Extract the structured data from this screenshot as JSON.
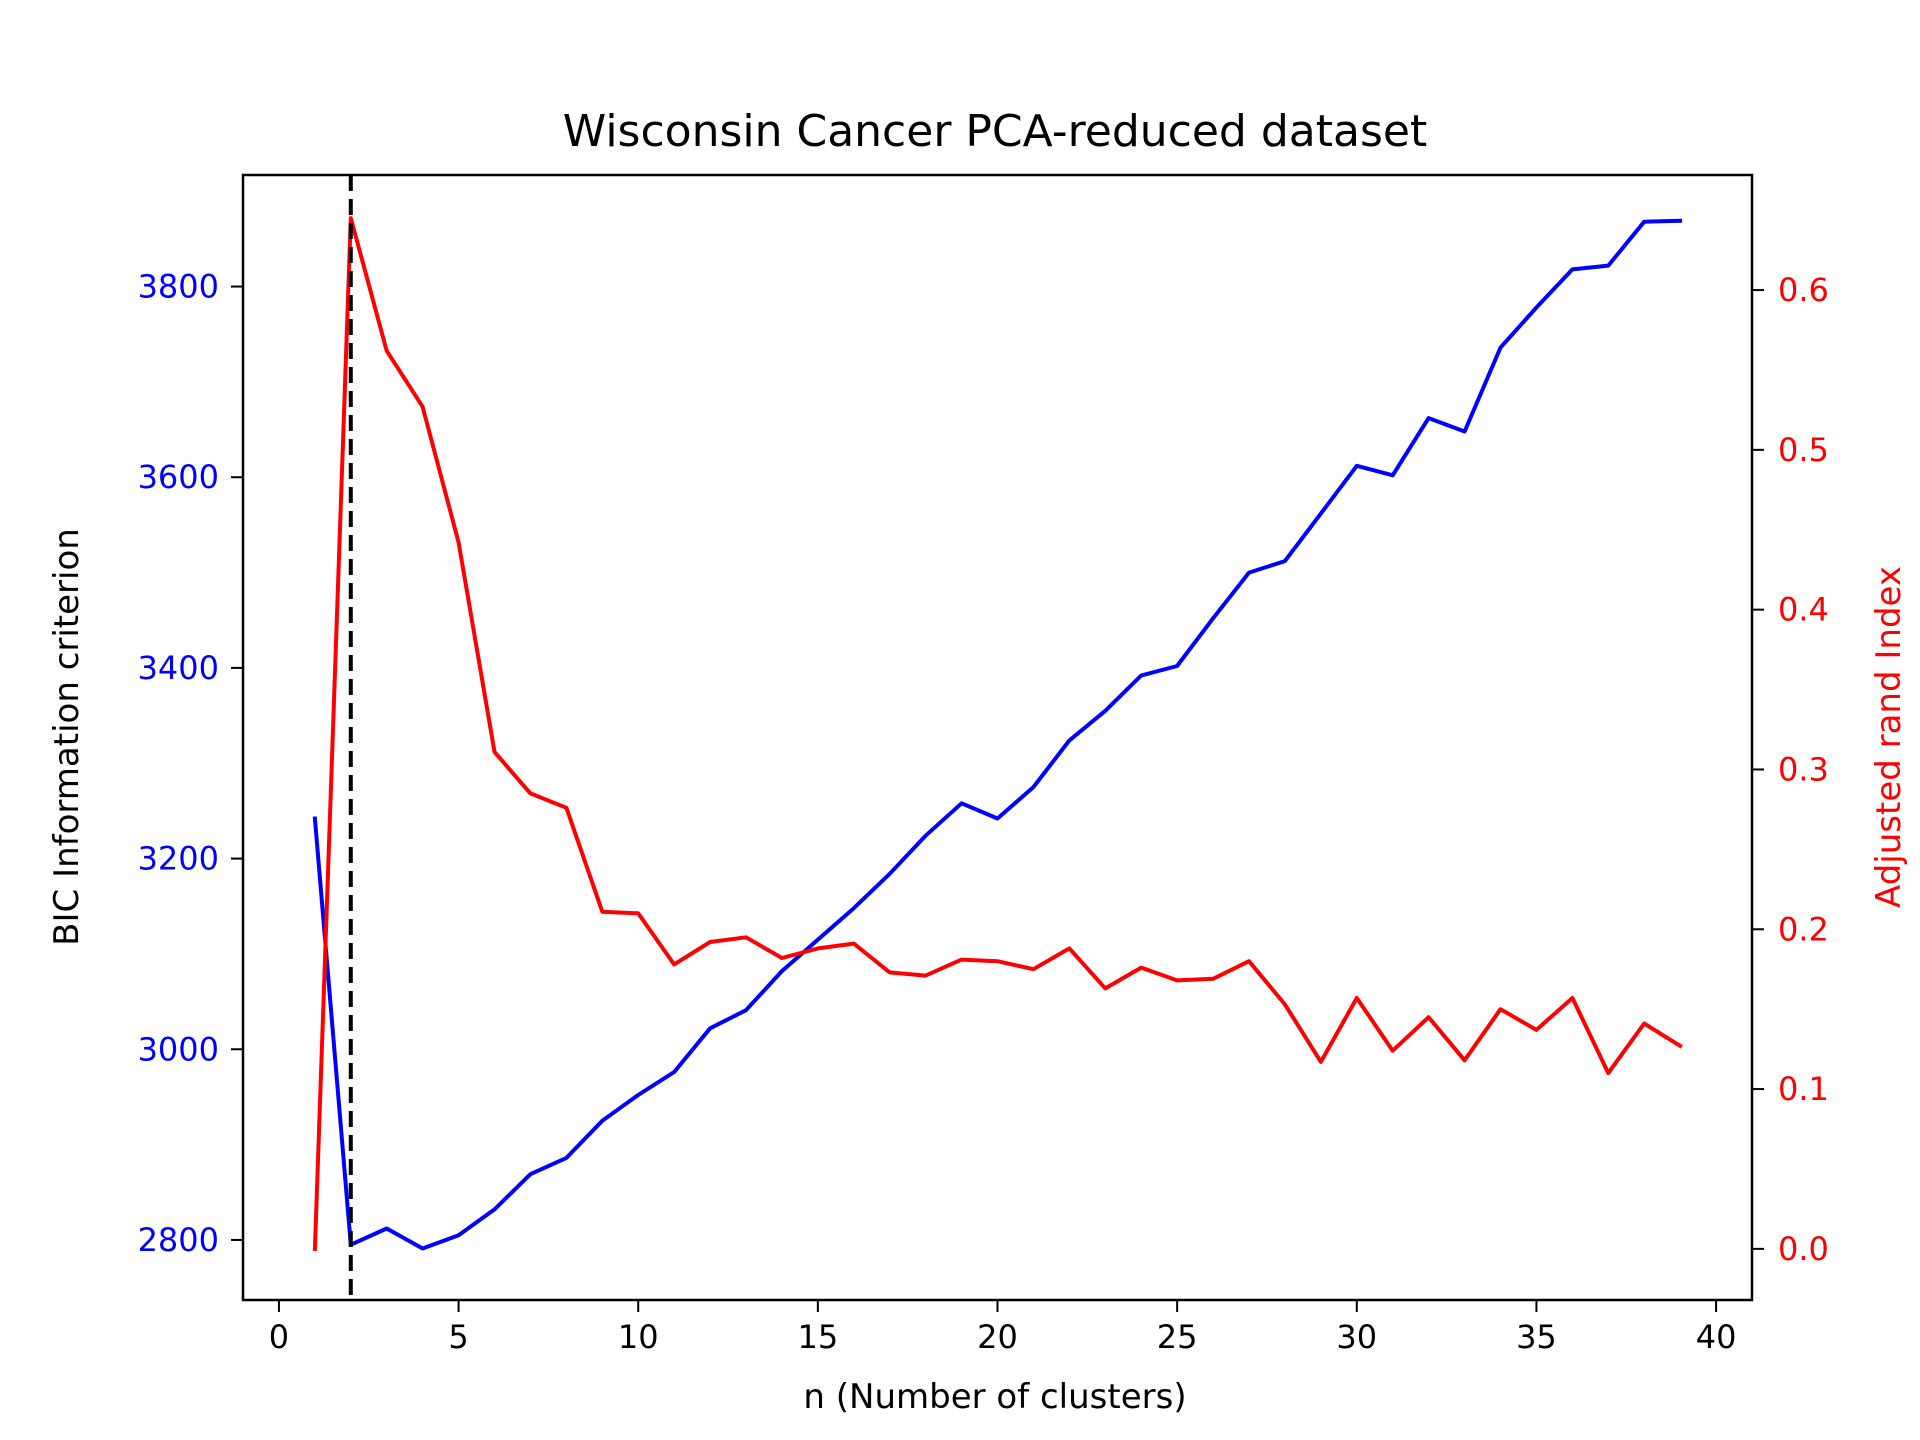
{
  "chart_data": {
    "type": "line",
    "title": "Wisconsin Cancer PCA-reduced dataset",
    "xlabel": "n (Number of clusters)",
    "ylabel_left": "BIC Information criterion",
    "ylabel_right": "Adjusted rand Index",
    "xlim": [
      -1,
      41
    ],
    "ylim_left": [
      2737,
      3917
    ],
    "ylim_right": [
      -0.032,
      0.672
    ],
    "x_ticks": [
      0,
      5,
      10,
      15,
      20,
      25,
      30,
      35,
      40
    ],
    "y_ticks_left": [
      2800,
      3000,
      3200,
      3400,
      3600,
      3800
    ],
    "y_ticks_right": [
      0.0,
      0.1,
      0.2,
      0.3,
      0.4,
      0.5,
      0.6
    ],
    "x_tick_labels": [
      "0",
      "5",
      "10",
      "15",
      "20",
      "25",
      "30",
      "35",
      "40"
    ],
    "y_tick_labels_left": [
      "2800",
      "3000",
      "3200",
      "3400",
      "3600",
      "3800"
    ],
    "y_tick_labels_right": [
      "0.0",
      "0.1",
      "0.2",
      "0.3",
      "0.4",
      "0.5",
      "0.6"
    ],
    "grid": false,
    "vline": {
      "x": 2,
      "style": "dashed",
      "color": "#000000"
    },
    "x": [
      1,
      2,
      3,
      4,
      5,
      6,
      7,
      8,
      9,
      10,
      11,
      12,
      13,
      14,
      15,
      16,
      17,
      18,
      19,
      20,
      21,
      22,
      23,
      24,
      25,
      26,
      27,
      28,
      29,
      30,
      31,
      32,
      33,
      34,
      35,
      36,
      37,
      38,
      39
    ],
    "series": [
      {
        "axis": "left",
        "color": "#0000ff",
        "values": [
          3242,
          2795,
          2812,
          2791,
          2805,
          2832,
          2869,
          2886,
          2925,
          2952,
          2976,
          3022,
          3041,
          3082,
          3115,
          3148,
          3184,
          3224,
          3258,
          3242,
          3275,
          3324,
          3355,
          3392,
          3402,
          3452,
          3500,
          3512,
          3562,
          3612,
          3602,
          3662,
          3648,
          3736,
          3778,
          3818,
          3822,
          3868,
          3869
        ]
      },
      {
        "axis": "right",
        "color": "#ff0000",
        "values": [
          0.0,
          0.645,
          0.562,
          0.527,
          0.442,
          0.311,
          0.285,
          0.276,
          0.211,
          0.21,
          0.178,
          0.192,
          0.195,
          0.182,
          0.188,
          0.191,
          0.173,
          0.171,
          0.181,
          0.18,
          0.175,
          0.188,
          0.163,
          0.176,
          0.168,
          0.169,
          0.18,
          0.153,
          0.117,
          0.157,
          0.124,
          0.145,
          0.118,
          0.15,
          0.137,
          0.157,
          0.11,
          0.141,
          0.127
        ]
      }
    ],
    "colors": {
      "left_axis": "#0000ff",
      "right_axis": "#ff0000",
      "frame": "#000000"
    }
  }
}
